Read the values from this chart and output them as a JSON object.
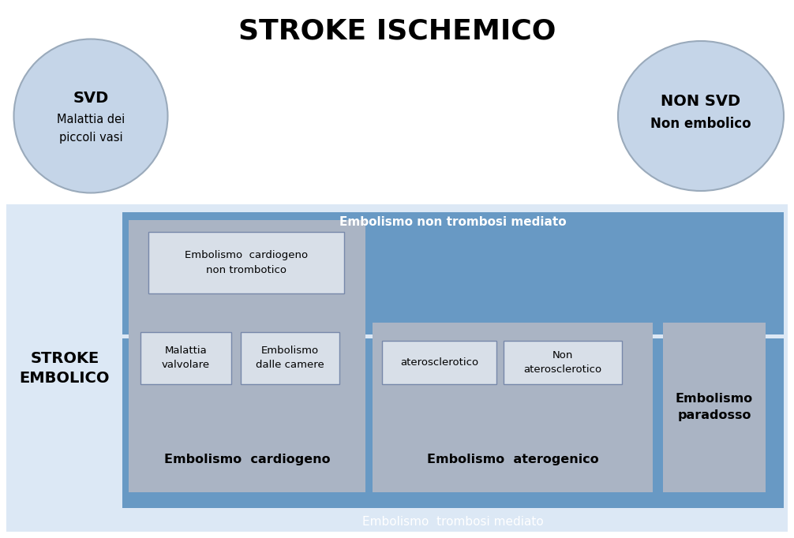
{
  "title": "STROKE ISCHEMICO",
  "title_fontsize": 26,
  "bg_color": "#ffffff",
  "light_blue_bg": "#dce8f5",
  "outer_box_color": "#5a8fc2",
  "inner_blue_color": "#6899c4",
  "gray_box_color": "#aab4c4",
  "inner_white_box_color": "#d8dfe8",
  "ellipse_color": "#c5d5e8",
  "ellipse_edge": "#9aaabb",
  "stroke_embolico_label": "STROKE\nEMBOLICO",
  "top_label": "Embolismo non trombosi mediato",
  "bottom_label": "Embolismo  trombosi mediato",
  "svd_bold": "SVD",
  "svd_rest": "Malattia dei\npiccoli vasi",
  "nonsvd_bold": "NON SVD",
  "nonsvd_rest": "Non embolico",
  "emb_cardiogeno_non_tromb": "Embolismo  cardiogeno\nnon trombotico",
  "malattia_valvolare": "Malattia\nvalvolare",
  "embolismo_dalle_camere": "Embolismo\ndalle camere",
  "embolismo_cardiogeno": "Embolismo  cardiogeno",
  "aterosclerotico": "aterosclerotico",
  "non_aterosclerotico": "Non\naterosclerotico",
  "embolismo_aterogenico": "Embolismo  aterogenico",
  "embolismo_paradosso": "Embolismo\nparadosso"
}
